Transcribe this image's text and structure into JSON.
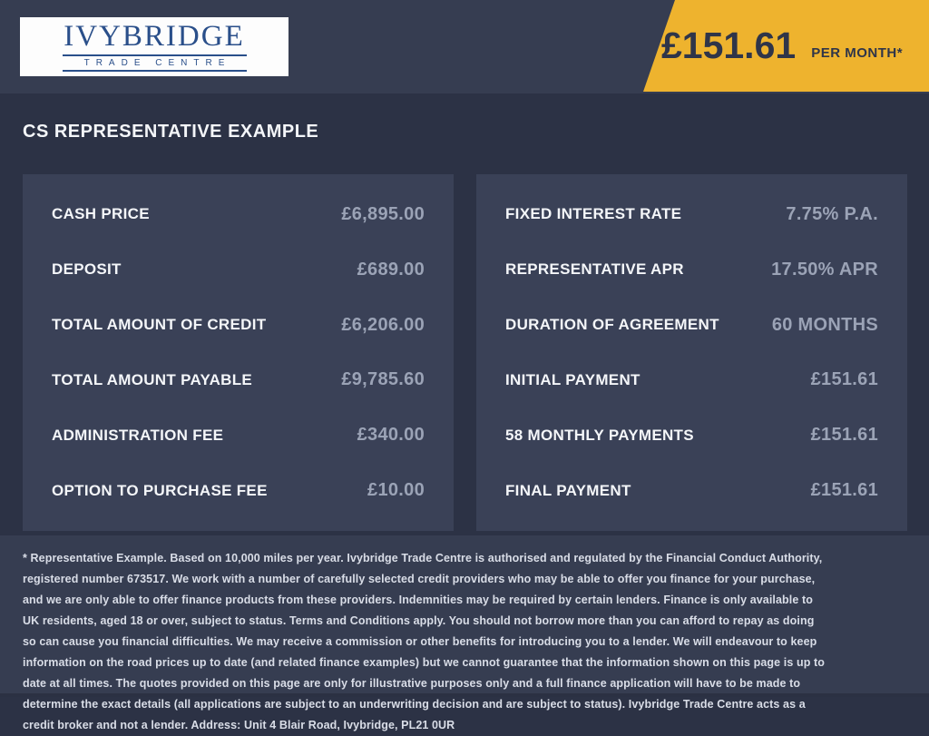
{
  "colors": {
    "band": "#363d51",
    "background": "#2c3245",
    "panel": "#3a4157",
    "accent_yellow": "#eeb32e",
    "navy_text": "#2f3549",
    "value_gray": "#9ba3b6",
    "logo_blue": "#2a4f8a"
  },
  "header": {
    "logo": {
      "name": "IVYBRIDGE",
      "subtitle": "TRADE CENTRE"
    },
    "price_banner": {
      "amount": "£151.61",
      "period": "PER MONTH*"
    }
  },
  "page_title": "CS REPRESENTATIVE EXAMPLE",
  "finance_example": {
    "left": [
      {
        "label": "CASH PRICE",
        "value": "£6,895.00"
      },
      {
        "label": "DEPOSIT",
        "value": "£689.00"
      },
      {
        "label": "TOTAL AMOUNT OF CREDIT",
        "value": "£6,206.00"
      },
      {
        "label": "TOTAL AMOUNT PAYABLE",
        "value": "£9,785.60"
      },
      {
        "label": "ADMINISTRATION FEE",
        "value": "£340.00"
      },
      {
        "label": "OPTION TO PURCHASE FEE",
        "value": "£10.00"
      }
    ],
    "right": [
      {
        "label": "FIXED INTEREST RATE",
        "value": "7.75% P.A."
      },
      {
        "label": "REPRESENTATIVE APR",
        "value": "17.50% APR"
      },
      {
        "label": "DURATION OF AGREEMENT",
        "value": "60 MONTHS"
      },
      {
        "label": "INITIAL PAYMENT",
        "value": "£151.61"
      },
      {
        "label": "58 MONTHLY PAYMENTS",
        "value": "£151.61"
      },
      {
        "label": "FINAL PAYMENT",
        "value": "£151.61"
      }
    ]
  },
  "disclaimer": "* Representative Example. Based on 10,000 miles per year. Ivybridge Trade Centre is authorised and regulated by the Financial Conduct Authority, registered number 673517. We work with a number of carefully selected credit providers who may be able to offer you finance for your purchase, and we are only able to offer finance products from these providers. Indemnities may be required by certain lenders. Finance is only available to UK residents, aged 18 or over, subject to status. Terms and Conditions apply. You should not borrow more than you can afford to repay as doing so can cause you financial difficulties. We may receive a commission or other benefits for introducing you to a lender. We will endeavour to keep information on the road prices up to date (and related finance examples) but we cannot guarantee that the information shown on this page is up to date at all times. The quotes provided on this page are only for illustrative purposes only and a full finance application will have to be made to determine the exact details (all applications are subject to an underwriting decision and are subject to status). Ivybridge Trade Centre acts as a credit broker and not a lender. Address: Unit 4 Blair Road, Ivybridge, PL21 0UR"
}
